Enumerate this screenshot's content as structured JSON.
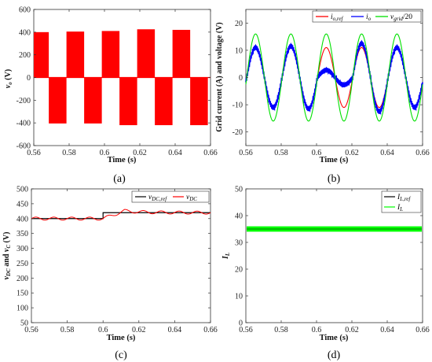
{
  "chart_data": [
    {
      "panel": "(a)",
      "type": "line",
      "xlabel": "Time (s)",
      "ylabel": "v_o (V)",
      "xlim": [
        0.56,
        0.66
      ],
      "ylim": [
        -600,
        600
      ],
      "xticks": [
        "0.56",
        "0.58",
        "0.6",
        "0.62",
        "0.64",
        "0.66"
      ],
      "yticks": [
        "600",
        "400",
        "200",
        "0",
        "-200",
        "-400",
        "-600"
      ],
      "grid": false,
      "series": [
        {
          "color": "#ff0000",
          "segments": [
            {
              "x0": 0.56,
              "x1": 0.5685,
              "v": 400
            },
            {
              "x0": 0.5685,
              "x1": 0.5785,
              "v": -405
            },
            {
              "x0": 0.5785,
              "x1": 0.5885,
              "v": 405
            },
            {
              "x0": 0.5885,
              "x1": 0.5985,
              "v": -405
            },
            {
              "x0": 0.5985,
              "x1": 0.6085,
              "v": 410
            },
            {
              "x0": 0.6085,
              "x1": 0.6185,
              "v": -420
            },
            {
              "x0": 0.6185,
              "x1": 0.6285,
              "v": 425
            },
            {
              "x0": 0.6285,
              "x1": 0.6385,
              "v": -420
            },
            {
              "x0": 0.6385,
              "x1": 0.6485,
              "v": 420
            },
            {
              "x0": 0.6485,
              "x1": 0.6585,
              "v": -420
            }
          ]
        }
      ]
    },
    {
      "panel": "(b)",
      "type": "line",
      "xlabel": "Time (s)",
      "ylabel": "Grid current (A) and voltage (V)",
      "xlim": [
        0.56,
        0.66
      ],
      "ylim": [
        -25,
        25
      ],
      "xticks": [
        "0.56",
        "0.58",
        "0.6",
        "0.62",
        "0.64",
        "0.66"
      ],
      "yticks": [
        "20",
        "10",
        "0",
        "-10",
        "-20"
      ],
      "grid": false,
      "legend": "top-right",
      "series": [
        {
          "name": "i_o,ref",
          "color": "#ff0000",
          "frequency_hz": 50,
          "phase_start_x": 0.5605,
          "amplitude": 11
        },
        {
          "name": "i_o",
          "color": "#0000ff",
          "frequency_hz": 50,
          "phase_start_x": 0.5605,
          "amplitude_per_cycle": [
            11,
            11.5,
            2.7,
            12.5,
            11
          ]
        },
        {
          "name": "v_grid/20",
          "color": "#00e000",
          "frequency_hz": 50,
          "phase_start_x": 0.5605,
          "amplitude": 16
        }
      ]
    },
    {
      "panel": "(c)",
      "type": "line",
      "xlabel": "Time (s)",
      "ylabel": "v_DC and v_C (V)",
      "xlim": [
        0.56,
        0.66
      ],
      "ylim": [
        50,
        500
      ],
      "xticks": [
        "0.56",
        "0.58",
        "0.6",
        "0.62",
        "0.64",
        "0.66"
      ],
      "yticks": [
        "500",
        "450",
        "400",
        "350",
        "300",
        "250",
        "200",
        "150",
        "100",
        "50"
      ],
      "grid": false,
      "legend": "top-right",
      "series": [
        {
          "name": "v_DC,ref",
          "color": "#000000",
          "x": [
            0.56,
            0.6,
            0.6,
            0.66
          ],
          "y": [
            400,
            400,
            420,
            420
          ]
        },
        {
          "name": "v_DC",
          "color": "#ff0000",
          "ripple_amplitude": 5,
          "ripple_frequency_hz": 100,
          "before_step": 400,
          "after_step": 420,
          "step_x": 0.6,
          "rise_end_x": 0.612,
          "overshoot": 6
        }
      ]
    },
    {
      "panel": "(d)",
      "type": "line",
      "xlabel": "Time (s)",
      "ylabel": "I_L",
      "xlim": [
        0.56,
        0.66
      ],
      "ylim": [
        0,
        50
      ],
      "xticks": [
        "0.56",
        "0.58",
        "0.6",
        "0.62",
        "0.64",
        "0.66"
      ],
      "yticks": [
        "50",
        "40",
        "30",
        "20",
        "10",
        "0"
      ],
      "grid": false,
      "legend": "top-right",
      "series": [
        {
          "name": "I_L,ref",
          "color": "#000000",
          "value": 35
        },
        {
          "name": "I_L",
          "color": "#00ff00",
          "value": 35,
          "ripple_band": [
            34,
            36
          ]
        }
      ]
    }
  ],
  "panel_labels": [
    "(a)",
    "(b)",
    "(c)",
    "(d)"
  ]
}
